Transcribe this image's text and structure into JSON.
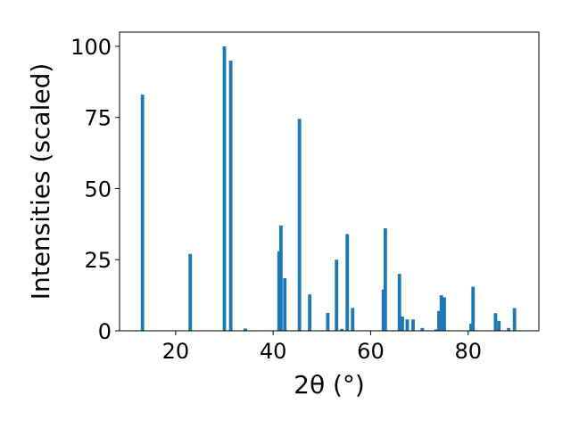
{
  "chart_data": {
    "type": "bar",
    "xlabel": "2θ (°)",
    "ylabel": "Intensities (scaled)",
    "xlim": [
      8.5,
      94.5
    ],
    "ylim": [
      0,
      105
    ],
    "xticks": [
      20,
      40,
      60,
      80
    ],
    "yticks": [
      0,
      25,
      50,
      75,
      100
    ],
    "bar_color": "#1f77b4",
    "bar_width": 0.7,
    "grid": false,
    "x": [
      13.2,
      23.0,
      30.0,
      31.3,
      34.3,
      41.2,
      41.6,
      42.4,
      45.4,
      47.5,
      51.2,
      53.0,
      54.1,
      55.2,
      56.3,
      62.6,
      63.0,
      65.9,
      66.5,
      67.5,
      68.7,
      70.6,
      73.4,
      74.0,
      74.5,
      75.1,
      80.6,
      81.0,
      85.6,
      86.3,
      88.3,
      89.5
    ],
    "values": [
      83,
      27,
      100,
      95,
      0.8,
      28,
      37,
      18.5,
      74.5,
      12.8,
      6.3,
      25,
      0.7,
      34,
      8,
      14.5,
      36,
      20,
      5,
      4,
      4,
      1,
      0.5,
      7,
      12.5,
      11.8,
      2.5,
      15.5,
      6.2,
      3.5,
      1,
      8
    ]
  }
}
